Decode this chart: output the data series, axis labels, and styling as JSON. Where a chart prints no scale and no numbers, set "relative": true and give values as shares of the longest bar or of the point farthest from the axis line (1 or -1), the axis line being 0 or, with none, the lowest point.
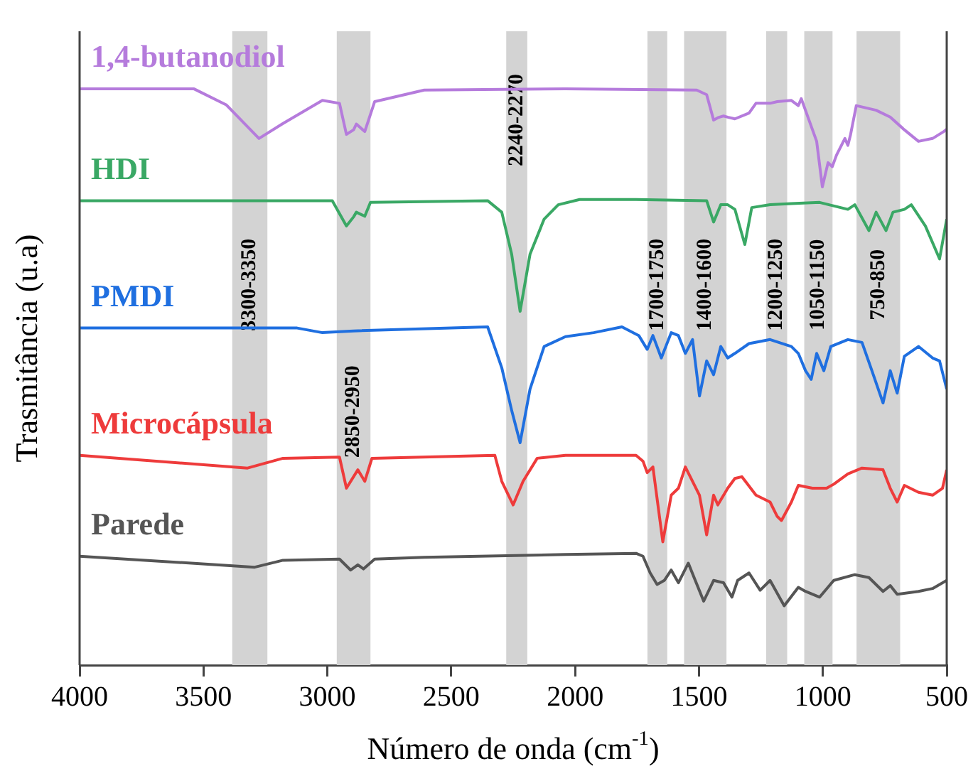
{
  "chart_data": {
    "type": "line",
    "relative": true,
    "xlabel": "Número de onda (cm$^{-1}$)",
    "ylabel": "Trasmitância (u.a)",
    "xlim": [
      4000,
      500
    ],
    "xticks": [
      4000,
      3500,
      3000,
      2500,
      2000,
      1500,
      1000,
      500
    ],
    "grid": false,
    "legend": false,
    "marker": "none",
    "line_style": "solid",
    "bands": [
      {
        "axis": "x",
        "from": 3384,
        "to": 3242,
        "label": "3300-3350",
        "color": "#d3d3d3"
      },
      {
        "axis": "x",
        "from": 2962,
        "to": 2826,
        "label": "2850-2950",
        "color": "#d3d3d3"
      },
      {
        "axis": "x",
        "from": 2278,
        "to": 2193,
        "label": "2240-2270",
        "color": "#d3d3d3"
      },
      {
        "axis": "x",
        "from": 1708,
        "to": 1628,
        "label": "1700-1750",
        "color": "#d3d3d3"
      },
      {
        "axis": "x",
        "from": 1560,
        "to": 1389,
        "label": "1400-1600",
        "color": "#d3d3d3"
      },
      {
        "axis": "x",
        "from": 1229,
        "to": 1144,
        "label": "1200-1250",
        "color": "#d3d3d3"
      },
      {
        "axis": "x",
        "from": 1075,
        "to": 961,
        "label": "1050-1150",
        "color": "#d3d3d3"
      },
      {
        "axis": "x",
        "from": 864,
        "to": 688,
        "label": "750-850",
        "color": "#d3d3d3"
      }
    ],
    "series": [
      {
        "name": "1,4-butanodiol",
        "color": "#b57bdc",
        "x": [
          4000,
          3664,
          3538,
          3407,
          3276,
          3179,
          3020,
          2951,
          2923,
          2894,
          2883,
          2849,
          2809,
          2609,
          2039,
          1509,
          1469,
          1441,
          1424,
          1401,
          1384,
          1355,
          1298,
          1270,
          1213,
          1184,
          1127,
          1099,
          1087,
          1025,
          1002,
          979,
          962,
          945,
          911,
          899,
          888,
          865,
          785,
          728,
          671,
          614,
          557,
          512,
          500
        ],
        "values": [
          1.0,
          1.0,
          1.0,
          0.972,
          0.914,
          0.94,
          0.98,
          0.975,
          0.921,
          0.929,
          0.939,
          0.926,
          0.978,
          0.998,
          1.0,
          0.998,
          0.99,
          0.946,
          0.95,
          0.953,
          0.951,
          0.948,
          0.958,
          0.975,
          0.975,
          0.978,
          0.98,
          0.971,
          0.983,
          0.909,
          0.83,
          0.872,
          0.865,
          0.885,
          0.914,
          0.902,
          0.921,
          0.971,
          0.963,
          0.951,
          0.929,
          0.909,
          0.914,
          0.926,
          0.93
        ]
      },
      {
        "name": "HDI",
        "color": "#3aa865",
        "x": [
          4000,
          2980,
          2923,
          2894,
          2883,
          2849,
          2826,
          2353,
          2296,
          2256,
          2222,
          2182,
          2125,
          2068,
          1982,
          1754,
          1469,
          1441,
          1412,
          1384,
          1355,
          1315,
          1287,
          1213,
          1127,
          1013,
          899,
          871,
          814,
          785,
          745,
          717,
          671,
          643,
          586,
          529,
          500
        ],
        "values": [
          0.806,
          0.806,
          0.762,
          0.778,
          0.786,
          0.779,
          0.803,
          0.806,
          0.786,
          0.713,
          0.614,
          0.713,
          0.774,
          0.799,
          0.808,
          0.808,
          0.806,
          0.769,
          0.799,
          0.799,
          0.791,
          0.73,
          0.794,
          0.799,
          0.801,
          0.803,
          0.791,
          0.799,
          0.754,
          0.786,
          0.754,
          0.786,
          0.791,
          0.799,
          0.762,
          0.705,
          0.774
        ]
      },
      {
        "name": "PMDI",
        "color": "#1f6fe0",
        "x": [
          4000,
          3122,
          3020,
          2894,
          2353,
          2296,
          2256,
          2222,
          2182,
          2125,
          2039,
          1925,
          1811,
          1743,
          1709,
          1686,
          1652,
          1612,
          1583,
          1555,
          1526,
          1498,
          1469,
          1441,
          1412,
          1384,
          1355,
          1298,
          1213,
          1127,
          1099,
          1070,
          1047,
          1025,
          996,
          968,
          899,
          842,
          802,
          757,
          728,
          700,
          671,
          614,
          557,
          529,
          500
        ],
        "values": [
          0.585,
          0.585,
          0.577,
          0.58,
          0.587,
          0.516,
          0.442,
          0.386,
          0.479,
          0.553,
          0.57,
          0.577,
          0.587,
          0.572,
          0.548,
          0.572,
          0.533,
          0.577,
          0.572,
          0.541,
          0.565,
          0.467,
          0.528,
          0.504,
          0.553,
          0.533,
          0.541,
          0.558,
          0.565,
          0.553,
          0.541,
          0.511,
          0.496,
          0.541,
          0.511,
          0.553,
          0.565,
          0.56,
          0.511,
          0.455,
          0.511,
          0.472,
          0.536,
          0.553,
          0.533,
          0.528,
          0.479
        ]
      },
      {
        "name": "Microcápsula",
        "color": "#ee3b3b",
        "x": [
          4000,
          3322,
          3179,
          2951,
          2923,
          2877,
          2849,
          2820,
          2324,
          2296,
          2250,
          2210,
          2153,
          2039,
          1754,
          1726,
          1709,
          1686,
          1646,
          1612,
          1583,
          1555,
          1498,
          1469,
          1441,
          1424,
          1384,
          1355,
          1327,
          1270,
          1213,
          1184,
          1167,
          1127,
          1099,
          1042,
          985,
          956,
          899,
          842,
          757,
          728,
          700,
          671,
          614,
          557,
          517,
          500
        ],
        "values": [
          0.364,
          0.342,
          0.359,
          0.361,
          0.307,
          0.339,
          0.319,
          0.359,
          0.364,
          0.319,
          0.278,
          0.319,
          0.359,
          0.364,
          0.364,
          0.354,
          0.334,
          0.344,
          0.214,
          0.295,
          0.307,
          0.344,
          0.295,
          0.226,
          0.295,
          0.278,
          0.307,
          0.324,
          0.327,
          0.295,
          0.283,
          0.258,
          0.251,
          0.283,
          0.312,
          0.307,
          0.307,
          0.314,
          0.332,
          0.342,
          0.339,
          0.307,
          0.283,
          0.312,
          0.3,
          0.295,
          0.307,
          0.339
        ]
      },
      {
        "name": "Parede",
        "color": "#555555",
        "x": [
          4000,
          3293,
          3179,
          2951,
          2906,
          2877,
          2854,
          2809,
          2609,
          2039,
          1754,
          1726,
          1697,
          1669,
          1640,
          1612,
          1583,
          1543,
          1515,
          1481,
          1441,
          1401,
          1367,
          1344,
          1298,
          1253,
          1213,
          1156,
          1099,
          1070,
          1013,
          956,
          871,
          814,
          757,
          728,
          700,
          614,
          557,
          500
        ],
        "values": [
          0.189,
          0.17,
          0.182,
          0.184,
          0.165,
          0.174,
          0.167,
          0.184,
          0.187,
          0.192,
          0.194,
          0.189,
          0.16,
          0.14,
          0.147,
          0.165,
          0.143,
          0.177,
          0.147,
          0.111,
          0.147,
          0.143,
          0.118,
          0.147,
          0.16,
          0.13,
          0.147,
          0.103,
          0.135,
          0.128,
          0.118,
          0.147,
          0.157,
          0.152,
          0.128,
          0.138,
          0.123,
          0.128,
          0.133,
          0.147
        ]
      }
    ]
  }
}
